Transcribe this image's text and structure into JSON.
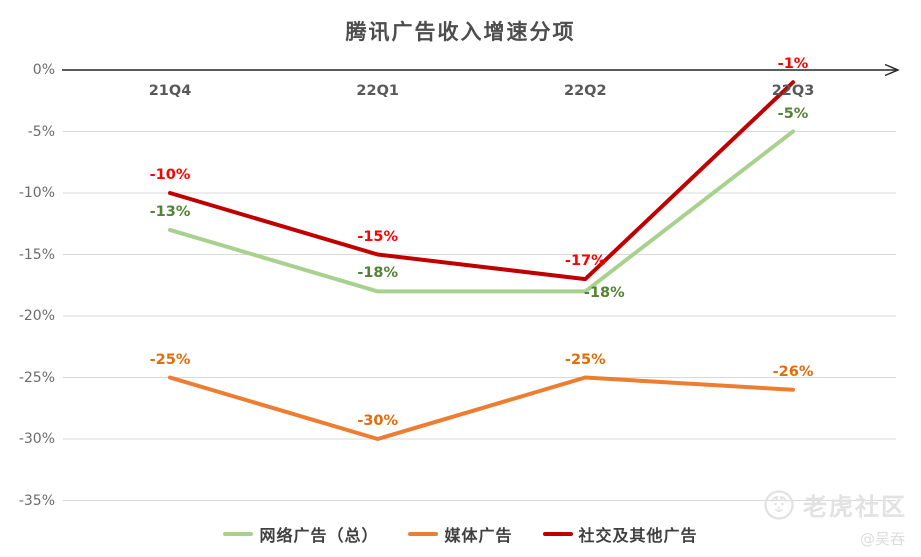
{
  "chart_data": {
    "type": "line",
    "title": "腾讯广告收入增速分项",
    "categories": [
      "21Q4",
      "22Q1",
      "22Q2",
      "22Q3"
    ],
    "series": [
      {
        "name": "网络广告（总）",
        "values": [
          -13,
          -18,
          -18,
          -5
        ],
        "labels": [
          "-13%",
          "-18%",
          "-18%",
          "-5%"
        ],
        "line_color": "#a9d18e",
        "label_color": "#548235"
      },
      {
        "name": "媒体广告",
        "values": [
          -25,
          -30,
          -25,
          -26
        ],
        "labels": [
          "-25%",
          "-30%",
          "-25%",
          "-26%"
        ],
        "line_color": "#ed7d31",
        "label_color": "#e36c09"
      },
      {
        "name": "社交及其他广告",
        "values": [
          -10,
          -15,
          -17,
          -1
        ],
        "labels": [
          "-10%",
          "-15%",
          "-17%",
          "-1%"
        ],
        "line_color": "#c00000",
        "label_color": "#ff0000"
      }
    ],
    "ylim": [
      -35,
      0
    ],
    "ytick_step": 5,
    "ytick_labels": [
      "0%",
      "-5%",
      "-10%",
      "-15%",
      "-20%",
      "-25%",
      "-30%",
      "-35%"
    ],
    "grid": true,
    "legend_position": "bottom",
    "axis_color": "#262626",
    "gridline_color": "#d9d9d9"
  },
  "watermark": {
    "brand": "老虎社区",
    "handle": "@吴吞",
    "icon": "tiger-icon"
  }
}
